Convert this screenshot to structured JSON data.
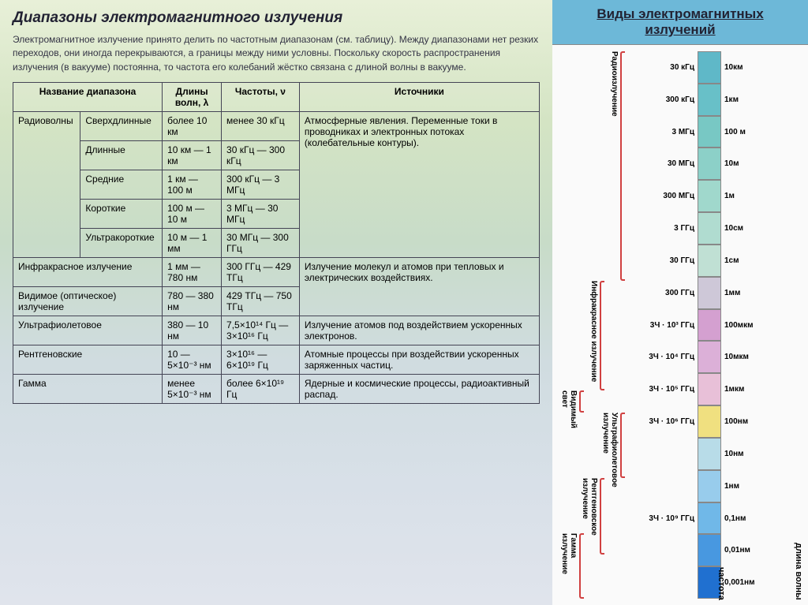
{
  "left": {
    "title": "Диапазоны электромагнитного излучения",
    "intro": "Электромагнитное излучение принято делить по частотным диапазонам (см. таблицу). Между диапазонами нет резких переходов, они иногда перекрываются, а границы между ними условны. Поскольку скорость распространения излучения (в вакууме) постоянна, то частота его колебаний жёстко связана с длиной волны в вакууме.",
    "headers": {
      "name": "Название диапазона",
      "wl": "Длины волн, λ",
      "freq": "Частоты, ν",
      "src": "Источники"
    },
    "radio": {
      "label": "Радиоволны",
      "subs": [
        {
          "n": "Сверхдлинные",
          "wl": "более 10 км",
          "fr": "менее 30 кГц"
        },
        {
          "n": "Длинные",
          "wl": "10 км — 1 км",
          "fr": "30 кГц — 300 кГц"
        },
        {
          "n": "Средние",
          "wl": "1 км — 100 м",
          "fr": "300 кГц — 3 МГц"
        },
        {
          "n": "Короткие",
          "wl": "100 м — 10 м",
          "fr": "3 МГц — 30 МГц"
        },
        {
          "n": "Ультракороткие",
          "wl": "10 м — 1 мм",
          "fr": "30 МГц — 300 ГГц"
        }
      ],
      "src": "Атмосферные явления. Переменные токи в проводниках и электронных потоках (колебательные контуры)."
    },
    "rows": [
      {
        "n": "Инфракрасное излучение",
        "wl": "1 мм — 780 нм",
        "fr": "300 ГГц — 429 ТГц",
        "src_span": 2,
        "src": "Излучение молекул и атомов при тепловых и электрических воздействиях."
      },
      {
        "n": "Видимое (оптическое) излучение",
        "wl": "780 — 380 нм",
        "fr": "429 ТГц — 750 ТГц"
      },
      {
        "n": "Ультрафиолетовое",
        "wl": "380 — 10 нм",
        "fr": "7,5×10¹⁴ Гц — 3×10¹⁶ Гц",
        "src": "Излучение атомов под воздействием ускоренных электронов."
      },
      {
        "n": "Рентгеновские",
        "wl": "10 — 5×10⁻³ нм",
        "fr": "3×10¹⁶ — 6×10¹⁹ Гц",
        "src": "Атомные процессы при воздействии ускоренных заряженных частиц."
      },
      {
        "n": "Гамма",
        "wl": "менее 5×10⁻³ нм",
        "fr": "более 6×10¹⁹ Гц",
        "src": "Ядерные и космические процессы, радиоактивный распад."
      }
    ]
  },
  "right": {
    "title": "Виды электромагнитных излучений",
    "axis_freq": "частота",
    "axis_wave": "длина волны",
    "bands": [
      {
        "label": "Радиоизлучение",
        "color": "#d04040",
        "top_pct": 0,
        "h_pct": 42
      },
      {
        "label": "Инфракрасное излучение",
        "color": "#d04040",
        "top_pct": 42,
        "h_pct": 20
      },
      {
        "label": "Видимый свет",
        "color": "#d04040",
        "top_pct": 62,
        "h_pct": 4
      },
      {
        "label": "Ультрафиолетовое излучение",
        "color": "#d04040",
        "top_pct": 66,
        "h_pct": 12
      },
      {
        "label": "Рентгеновское излучение",
        "color": "#d04040",
        "top_pct": 78,
        "h_pct": 14
      },
      {
        "label": "Гамма излучение",
        "color": "#d04040",
        "top_pct": 88,
        "h_pct": 12
      }
    ],
    "scale": [
      {
        "f": "30 кГц",
        "w": "10км",
        "c": "#5fb8c8"
      },
      {
        "f": "300 кГц",
        "w": "1км",
        "c": "#68c0c8"
      },
      {
        "f": "3 МГц",
        "w": "100 м",
        "c": "#78c8c4"
      },
      {
        "f": "30 МГц",
        "w": "10м",
        "c": "#8cd0c8"
      },
      {
        "f": "300 МГц",
        "w": "1м",
        "c": "#a0d8cc"
      },
      {
        "f": "3 ГГц",
        "w": "10см",
        "c": "#b0dcd0"
      },
      {
        "f": "30 ГГц",
        "w": "1см",
        "c": "#c0e0d4"
      },
      {
        "f": "300 ГГц",
        "w": "1мм",
        "c": "#cec8d8"
      },
      {
        "f": "3Ч · 10³ ГГц",
        "w": "100мкм",
        "c": "#d4a0d0"
      },
      {
        "f": "3Ч · 10⁴ ГГц",
        "w": "10мкм",
        "c": "#dcb0d8"
      },
      {
        "f": "3Ч · 10⁵ ГГц",
        "w": "1мкм",
        "c": "#e8c0d8"
      },
      {
        "f": "3Ч · 10⁶ ГГц",
        "w": "100нм",
        "c": "#f0e080"
      },
      {
        "f": "",
        "w": "10нм",
        "c": "#b8dce8"
      },
      {
        "f": "",
        "w": "1нм",
        "c": "#98ccec"
      },
      {
        "f": "3Ч · 10⁹ ГГц",
        "w": "0,1нм",
        "c": "#70b8e8"
      },
      {
        "f": "",
        "w": "0,01нм",
        "c": "#4898e0"
      },
      {
        "f": "",
        "w": "0,001нм",
        "c": "#2070d0"
      }
    ]
  }
}
